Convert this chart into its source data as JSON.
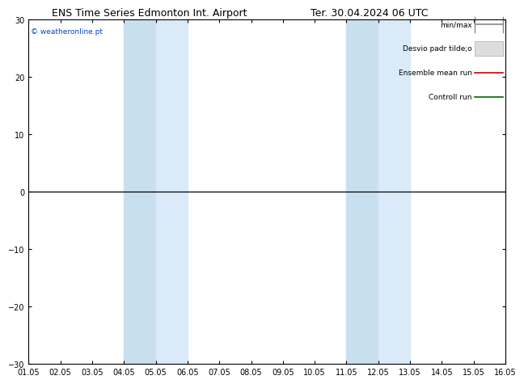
{
  "title_left": "ENS Time Series Edmonton Int. Airport",
  "title_right": "Ter. 30.04.2024 06 UTC",
  "ylim": [
    -30,
    30
  ],
  "yticks": [
    -30,
    -20,
    -10,
    0,
    10,
    20,
    30
  ],
  "xmin": 0,
  "xmax": 15,
  "xtick_labels": [
    "01.05",
    "02.05",
    "03.05",
    "04.05",
    "05.05",
    "06.05",
    "07.05",
    "08.05",
    "09.05",
    "10.05",
    "11.05",
    "12.05",
    "13.05",
    "14.05",
    "15.05",
    "16.05"
  ],
  "shaded_bands": [
    [
      3,
      4
    ],
    [
      4,
      5
    ],
    [
      10,
      11
    ],
    [
      11,
      12
    ]
  ],
  "shade_color_dark": "#c8dff0",
  "shade_color_light": "#daeaf8",
  "zero_line_y": 0,
  "watermark": "© weatheronline.pt",
  "legend_labels": [
    "min/max",
    "Desvio padr tilde;o",
    "Ensemble mean run",
    "Controll run"
  ],
  "background_color": "#ffffff",
  "plot_bg_color": "#ffffff",
  "title_fontsize": 9,
  "tick_fontsize": 7,
  "watermark_color": "#0044cc"
}
